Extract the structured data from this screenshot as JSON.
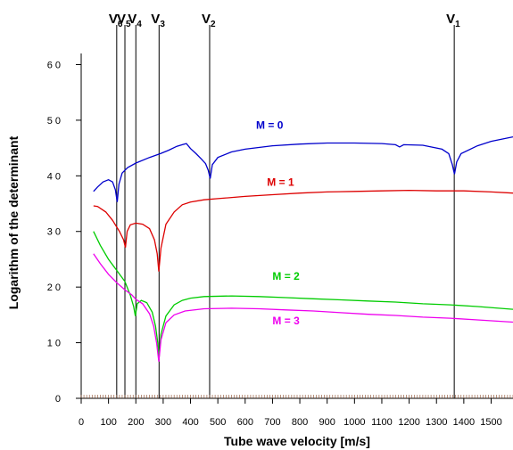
{
  "chart_data": {
    "type": "line",
    "xlabel": "Tube wave velocity  [m/s]",
    "ylabel": "Logarithm of the determinant",
    "xlim": [
      0,
      1580
    ],
    "ylim": [
      0,
      62
    ],
    "x_ticks": [
      0,
      100,
      200,
      300,
      400,
      500,
      600,
      700,
      800,
      900,
      1000,
      1100,
      1200,
      1300,
      1400,
      1500
    ],
    "x_tick_labels": [
      "0",
      "100",
      "200",
      "300",
      "400",
      "500",
      "600",
      "700",
      "800",
      "900",
      "1000",
      "1100",
      "1200",
      "1300",
      "1400",
      "1500"
    ],
    "y_ticks": [
      0,
      10,
      20,
      30,
      40,
      50,
      60
    ],
    "y_tick_labels": [
      "0",
      "1 0",
      "2 0",
      "3 0",
      "4 0",
      "5 0",
      "6 0"
    ],
    "grid": false,
    "vertical_lines": [
      {
        "label": "V",
        "sub": "6",
        "x": 130
      },
      {
        "label": "V",
        "sub": "5",
        "x": 160
      },
      {
        "label": "V",
        "sub": "4",
        "x": 200
      },
      {
        "label": "V",
        "sub": "3",
        "x": 285
      },
      {
        "label": "V",
        "sub": "2",
        "x": 470
      },
      {
        "label": "V",
        "sub": "1",
        "x": 1365
      }
    ],
    "series": [
      {
        "name": "M = 0",
        "color": "#0000cc",
        "label_at": [
          640,
          48.5
        ],
        "points": [
          [
            45,
            37.2
          ],
          [
            60,
            38
          ],
          [
            80,
            38.9
          ],
          [
            100,
            39.3
          ],
          [
            115,
            38.9
          ],
          [
            125,
            37.5
          ],
          [
            132,
            35.3
          ],
          [
            138,
            38.5
          ],
          [
            150,
            40.5
          ],
          [
            170,
            41.5
          ],
          [
            200,
            42.3
          ],
          [
            250,
            43.3
          ],
          [
            290,
            44
          ],
          [
            320,
            44.6
          ],
          [
            350,
            45.3
          ],
          [
            370,
            45.6
          ],
          [
            385,
            45.8
          ],
          [
            400,
            44.9
          ],
          [
            420,
            44
          ],
          [
            440,
            43
          ],
          [
            455,
            42.2
          ],
          [
            465,
            41
          ],
          [
            472,
            39.5
          ],
          [
            480,
            42
          ],
          [
            500,
            43.3
          ],
          [
            550,
            44.3
          ],
          [
            600,
            44.8
          ],
          [
            700,
            45.4
          ],
          [
            800,
            45.7
          ],
          [
            900,
            45.9
          ],
          [
            1000,
            45.9
          ],
          [
            1100,
            45.8
          ],
          [
            1150,
            45.6
          ],
          [
            1165,
            45.2
          ],
          [
            1180,
            45.6
          ],
          [
            1250,
            45.5
          ],
          [
            1320,
            44.8
          ],
          [
            1345,
            44
          ],
          [
            1358,
            42
          ],
          [
            1366,
            40.3
          ],
          [
            1374,
            42.5
          ],
          [
            1390,
            44
          ],
          [
            1450,
            45.4
          ],
          [
            1500,
            46.2
          ],
          [
            1580,
            47
          ]
        ]
      },
      {
        "name": "M = 1",
        "color": "#dd0000",
        "label_at": [
          680,
          38.2
        ],
        "points": [
          [
            45,
            34.6
          ],
          [
            60,
            34.5
          ],
          [
            90,
            33.5
          ],
          [
            115,
            32
          ],
          [
            140,
            30
          ],
          [
            155,
            28.5
          ],
          [
            162,
            27.1
          ],
          [
            168,
            30
          ],
          [
            180,
            31.2
          ],
          [
            200,
            31.5
          ],
          [
            225,
            31.3
          ],
          [
            250,
            30.5
          ],
          [
            268,
            28.5
          ],
          [
            278,
            26
          ],
          [
            284,
            22.8
          ],
          [
            292,
            27
          ],
          [
            310,
            31.3
          ],
          [
            340,
            33.5
          ],
          [
            370,
            34.8
          ],
          [
            400,
            35.3
          ],
          [
            450,
            35.7
          ],
          [
            500,
            35.9
          ],
          [
            600,
            36.3
          ],
          [
            700,
            36.6
          ],
          [
            800,
            36.9
          ],
          [
            900,
            37.1
          ],
          [
            1000,
            37.2
          ],
          [
            1100,
            37.3
          ],
          [
            1200,
            37.4
          ],
          [
            1300,
            37.3
          ],
          [
            1400,
            37.3
          ],
          [
            1500,
            37.1
          ],
          [
            1580,
            36.9
          ]
        ]
      },
      {
        "name": "M = 2",
        "color": "#00cc00",
        "label_at": [
          700,
          21.3
        ],
        "points": [
          [
            45,
            30
          ],
          [
            70,
            27.5
          ],
          [
            100,
            25
          ],
          [
            130,
            23
          ],
          [
            160,
            21
          ],
          [
            180,
            18.5
          ],
          [
            192,
            16.5
          ],
          [
            198,
            14.8
          ],
          [
            205,
            17
          ],
          [
            220,
            17.6
          ],
          [
            240,
            17.2
          ],
          [
            260,
            15.5
          ],
          [
            272,
            13
          ],
          [
            280,
            10
          ],
          [
            285,
            7.3
          ],
          [
            292,
            11.5
          ],
          [
            310,
            14.8
          ],
          [
            340,
            16.8
          ],
          [
            370,
            17.6
          ],
          [
            400,
            18
          ],
          [
            450,
            18.3
          ],
          [
            550,
            18.4
          ],
          [
            650,
            18.3
          ],
          [
            750,
            18.1
          ],
          [
            850,
            17.9
          ],
          [
            950,
            17.7
          ],
          [
            1050,
            17.5
          ],
          [
            1150,
            17.3
          ],
          [
            1250,
            17
          ],
          [
            1350,
            16.8
          ],
          [
            1450,
            16.5
          ],
          [
            1580,
            16
          ]
        ]
      },
      {
        "name": "M = 3",
        "color": "#ee00ee",
        "label_at": [
          700,
          13.3
        ],
        "points": [
          [
            45,
            26
          ],
          [
            70,
            24.2
          ],
          [
            100,
            22.3
          ],
          [
            130,
            20.8
          ],
          [
            160,
            19.5
          ],
          [
            185,
            18.6
          ],
          [
            200,
            17.8
          ],
          [
            225,
            17
          ],
          [
            250,
            15.2
          ],
          [
            265,
            13
          ],
          [
            276,
            10
          ],
          [
            284,
            6.6
          ],
          [
            292,
            10.5
          ],
          [
            310,
            13.6
          ],
          [
            340,
            15
          ],
          [
            380,
            15.7
          ],
          [
            450,
            16.1
          ],
          [
            550,
            16.2
          ],
          [
            650,
            16.1
          ],
          [
            750,
            15.9
          ],
          [
            850,
            15.7
          ],
          [
            950,
            15.4
          ],
          [
            1050,
            15.1
          ],
          [
            1150,
            14.9
          ],
          [
            1250,
            14.6
          ],
          [
            1350,
            14.4
          ],
          [
            1450,
            14.1
          ],
          [
            1580,
            13.7
          ]
        ]
      }
    ]
  }
}
